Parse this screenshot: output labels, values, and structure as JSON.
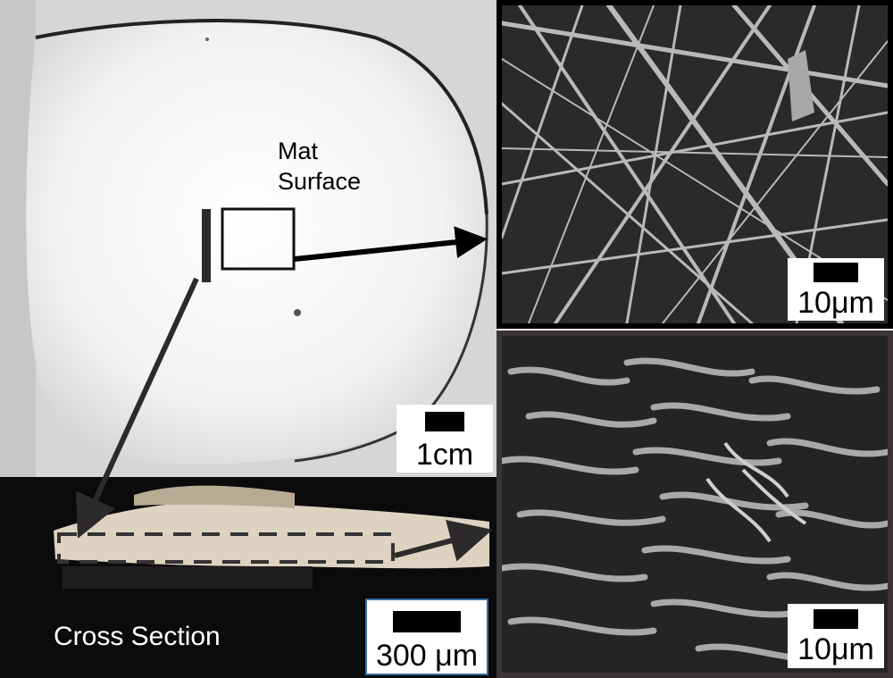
{
  "annotations": {
    "mat_surface_line1": "Mat",
    "mat_surface_line2": "Surface",
    "cross_section": "Cross Section"
  },
  "scale_bars": {
    "photo": "1cm",
    "cross_section": "300 μm",
    "sem_surface": "10μm",
    "sem_cross_section": "10μm"
  },
  "colors": {
    "arrow": "#2c2a2a",
    "frame": "#000000"
  }
}
